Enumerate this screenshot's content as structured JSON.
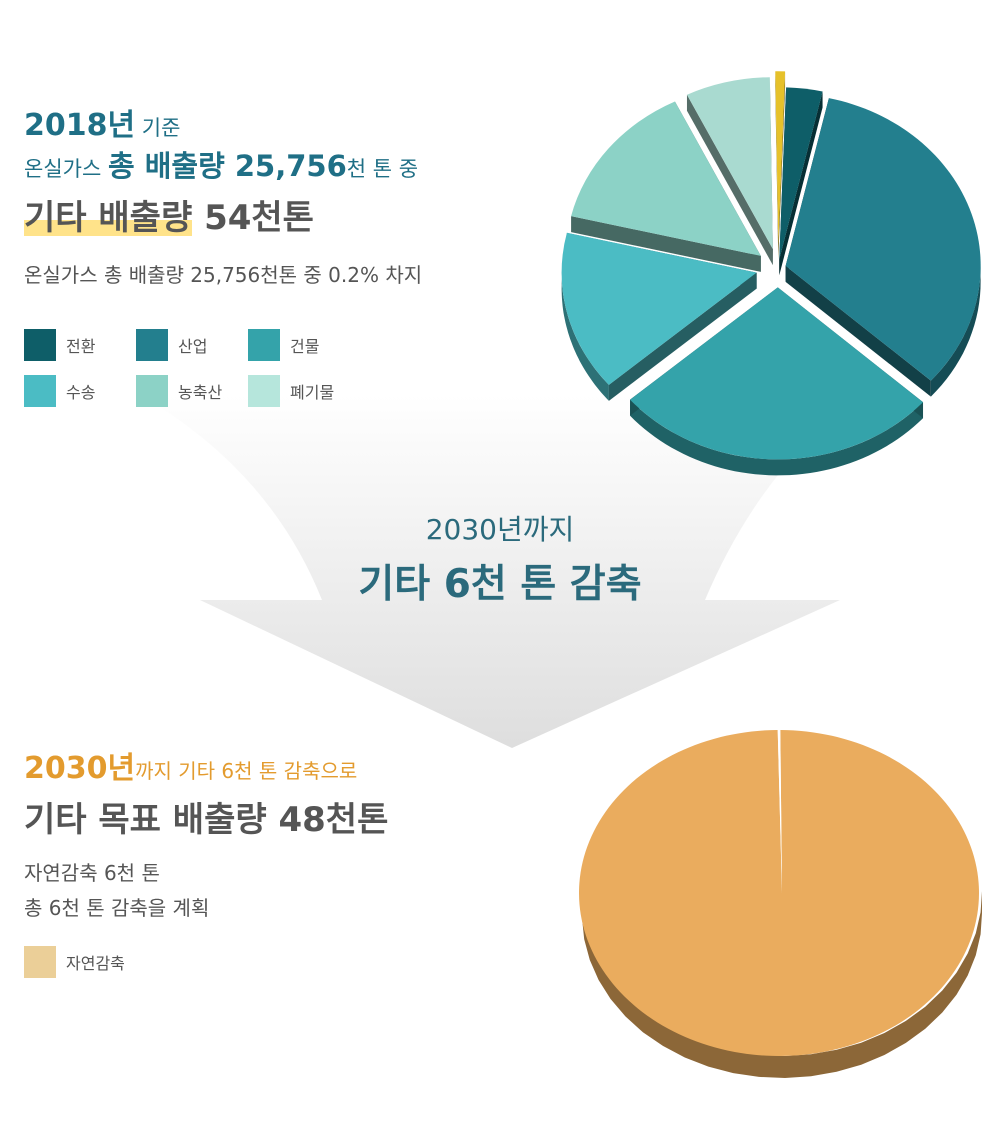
{
  "colors": {
    "accent_teal": "#1f6f86",
    "accent_orange": "#e39b2e",
    "highlight": "#ffe38a",
    "text": "#555555"
  },
  "top": {
    "year_text": "2018년",
    "year_suffix": " 기준",
    "line2_prefix": "온실가스 ",
    "line2_big": "총 배출량 25,756",
    "line2_suffix": "천 톤 중",
    "headline_highlight": "기타 배출량",
    "headline_rest": " 54천톤",
    "description": "온실가스 총 배출량 25,756천톤 중 0.2% 차지",
    "legend": [
      {
        "label": "전환",
        "color": "#0e5e68"
      },
      {
        "label": "산업",
        "color": "#237f8e"
      },
      {
        "label": "건물",
        "color": "#34a3aa"
      },
      {
        "label": "수송",
        "color": "#4bbcc4"
      },
      {
        "label": "농축산",
        "color": "#8cd2c6"
      },
      {
        "label": "폐기물",
        "color": "#b6e6dc"
      }
    ]
  },
  "middle": {
    "line1": "2030년까지",
    "line2": "기타 6천 톤 감축"
  },
  "bottom": {
    "year_text": "2030년",
    "year_suffix": "까지 기타 6천 톤 감축으로",
    "headline": "기타 목표 배출량 48천톤",
    "desc1": "자연감축 6천 톤",
    "desc2": "총 6천 톤 감축을 계획",
    "legend": [
      {
        "label": "자연감축",
        "color": "#ebcf98"
      }
    ]
  },
  "chart_data": [
    {
      "type": "pie",
      "series": [
        {
          "values": [
            3.0,
            33.0,
            27.0,
            15.0,
            14.0,
            7.0,
            0.8
          ]
        }
      ],
      "colors": [
        "#0e5e68",
        "#237f8e",
        "#34a3aa",
        "#4bbcc4",
        "#8cd2c6",
        "#a9dad0",
        "#e6c12a"
      ],
      "exploded": true,
      "three_d": true
    },
    {
      "type": "pie",
      "series": [
        {
          "values": [
            99.8,
            0.2
          ]
        }
      ],
      "colors": [
        "#eaac5e",
        "#ffffff"
      ],
      "three_d": true
    }
  ]
}
